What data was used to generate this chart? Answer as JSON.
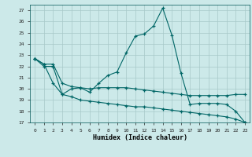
{
  "xlabel": "Humidex (Indice chaleur)",
  "background_color": "#cce9e9",
  "grid_color": "#a8c8c8",
  "line_color": "#006666",
  "xlim": [
    -0.5,
    23.5
  ],
  "ylim": [
    17,
    27.5
  ],
  "yticks": [
    17,
    18,
    19,
    20,
    21,
    22,
    23,
    24,
    25,
    26,
    27
  ],
  "xticks": [
    0,
    1,
    2,
    3,
    4,
    5,
    6,
    7,
    8,
    9,
    10,
    11,
    12,
    13,
    14,
    15,
    16,
    17,
    18,
    19,
    20,
    21,
    22,
    23
  ],
  "top_y": [
    22.7,
    22.2,
    22.2,
    20.5,
    20.2,
    20.1,
    19.7,
    20.5,
    21.2,
    21.5,
    23.2,
    24.7,
    24.9,
    25.6,
    27.2,
    24.8,
    21.4,
    18.6,
    18.7,
    18.7,
    18.7,
    18.6,
    18.0,
    17.0
  ],
  "mid_y": [
    22.7,
    22.2,
    20.5,
    19.5,
    20.0,
    20.1,
    20.0,
    20.1,
    20.1,
    20.1,
    20.1,
    20.0,
    19.9,
    19.8,
    19.7,
    19.6,
    19.5,
    19.4,
    19.4,
    19.4,
    19.4,
    19.4,
    19.5,
    19.5
  ],
  "bot_y": [
    22.7,
    22.0,
    22.0,
    19.5,
    19.3,
    19.0,
    18.9,
    18.8,
    18.7,
    18.6,
    18.5,
    18.4,
    18.4,
    18.3,
    18.2,
    18.1,
    18.0,
    17.9,
    17.8,
    17.7,
    17.6,
    17.5,
    17.3,
    17.0
  ]
}
